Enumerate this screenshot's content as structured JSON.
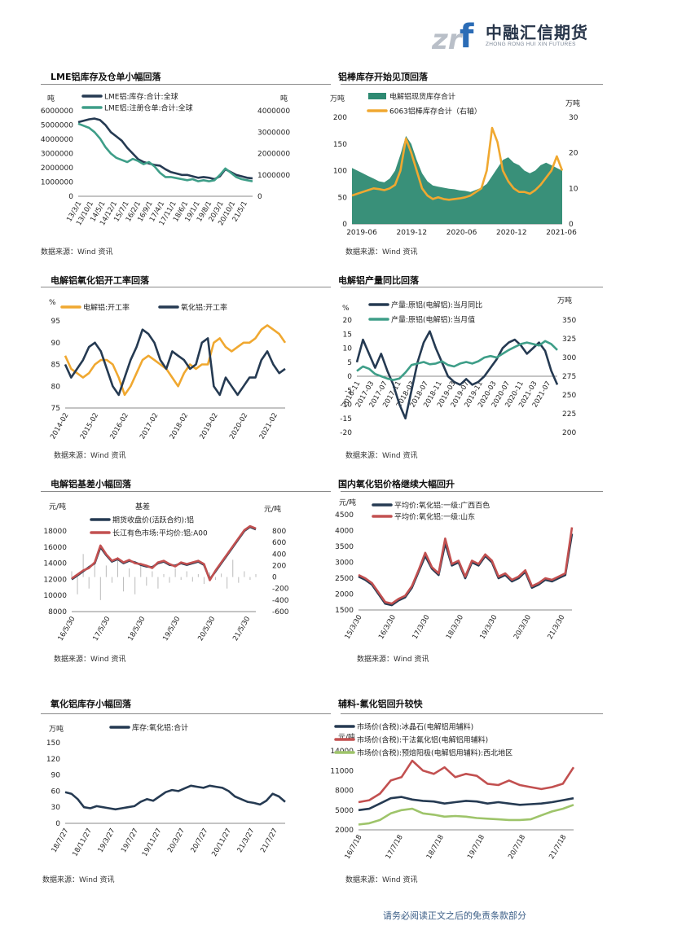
{
  "header": {
    "logo_mark": "zrf",
    "logo_cn": "中融汇信期货",
    "logo_en": "ZHONG RONG HUI XIN FUTURES"
  },
  "footer": {
    "disclaimer": "请务必阅读正文之后的免责条款部分"
  },
  "colors": {
    "navy": "#253a52",
    "teal": "#3e9e88",
    "orange": "#f0a830",
    "green_fill": "#2e8a72",
    "red": "#c25050",
    "lime": "#9ec46a"
  },
  "panels": [
    {
      "title": "LME铝库存及仓单小幅回落",
      "source": "数据来源：Wind 资讯",
      "left_unit": "吨",
      "right_unit": "吨",
      "left_ticks": [
        "6000000",
        "5000000",
        "4000000",
        "3000000",
        "2000000",
        "1000000",
        "0"
      ],
      "right_ticks": [
        "4000000",
        "3000000",
        "2000000",
        "1000000",
        "0"
      ],
      "x_ticks": [
        "13/3/1",
        "13/10/1",
        "14/5/1",
        "14/12/1",
        "15/7/1",
        "16/2/1",
        "16/9/1",
        "17/4/1",
        "17/11/1",
        "18/6/1",
        "19/1/1",
        "19/8/1",
        "20/3/1",
        "20/10/1",
        "21/5/1"
      ],
      "legend": [
        "LME铝:库存:合计:全球",
        "LME铝:注册仓单:合计:全球"
      ]
    },
    {
      "title": "铝棒库存开始见顶回落",
      "source": "数据来源：Wind 资讯",
      "left_unit": "万吨",
      "right_unit": "万吨",
      "left_ticks": [
        "200",
        "150",
        "100",
        "50",
        "0"
      ],
      "right_ticks": [
        "30",
        "20",
        "10",
        "0"
      ],
      "x_ticks": [
        "2019-06",
        "2019-12",
        "2020-06",
        "2020-12",
        "2021-06"
      ],
      "legend": [
        "电解铝现货库存合计",
        "6063铝棒库存合计（右轴）"
      ]
    },
    {
      "title": "电解铝氧化铝开工率回落",
      "source": "数据来源：Wind 资讯",
      "left_unit": "%",
      "left_ticks": [
        "95",
        "90",
        "85",
        "80",
        "75"
      ],
      "x_ticks": [
        "2014-02",
        "2015-02",
        "2016-02",
        "2017-02",
        "2018-02",
        "2019-02",
        "2020-02",
        "2021-02"
      ],
      "legend": [
        "电解铝:开工率",
        "氧化铝:开工率"
      ]
    },
    {
      "title": "电解铝产量同比回落",
      "source": "数据来源：Wind 资讯",
      "left_unit": "%",
      "right_unit": "万吨",
      "left_ticks": [
        "20",
        "15",
        "10",
        "5",
        "0",
        "-5",
        "-10",
        "-15",
        "-20"
      ],
      "right_ticks": [
        "350",
        "325",
        "300",
        "275",
        "250",
        "225",
        "200"
      ],
      "x_ticks": [
        "2016-11",
        "2017-03",
        "2017-07",
        "2017-11",
        "2018-03",
        "2018-07",
        "2018-11",
        "2019-03",
        "2019-07",
        "2019-11",
        "2020-03",
        "2020-07",
        "2020-11",
        "2021-03",
        "2021-07"
      ],
      "legend": [
        "产量:原铝(电解铝):当月同比",
        "产量:原铝(电解铝):当月值"
      ]
    },
    {
      "title": "电解铝基差小幅回落",
      "source": "数据来源：Wind 资讯",
      "left_unit": "元/吨",
      "right_unit": "元/吨",
      "left_ticks": [
        "18000",
        "16000",
        "14000",
        "12000",
        "10000",
        "8000"
      ],
      "right_ticks": [
        "800",
        "600",
        "400",
        "200",
        "0",
        "-200",
        "-400",
        "-600"
      ],
      "x_ticks": [
        "16/5/30",
        "17/5/30",
        "18/5/30",
        "19/5/30",
        "20/5/30",
        "21/5/30"
      ],
      "legend": [
        "基差",
        "期货收盘价(活跃合约):铝",
        "长江有色市场:平均价:铝:A00"
      ]
    },
    {
      "title": "国内氧化铝价格继续大幅回升",
      "source": "数据来源：Wind 资讯",
      "left_unit": "元/吨",
      "left_ticks": [
        "4500",
        "4000",
        "3500",
        "3000",
        "2500",
        "2000",
        "1500"
      ],
      "x_ticks": [
        "15/3/30",
        "16/3/30",
        "17/3/30",
        "18/3/30",
        "19/3/30",
        "20/3/30",
        "21/3/30"
      ],
      "legend": [
        "平均价:氧化铝:一级:广西百色",
        "平均价:氧化铝:一级:山东"
      ]
    },
    {
      "title": "氧化铝库存小幅回落",
      "source": "数据来源：Wind 资讯",
      "left_unit": "万吨",
      "left_ticks": [
        "150",
        "120",
        "90",
        "60",
        "30",
        "0"
      ],
      "x_ticks": [
        "18/7/27",
        "18/11/27",
        "19/3/27",
        "19/7/27",
        "19/11/27",
        "20/3/27",
        "20/7/27",
        "20/11/27",
        "21/3/27",
        "21/7/27"
      ],
      "legend": [
        "库存:氧化铝:合计"
      ]
    },
    {
      "title": "辅料-氟化铝回升较快",
      "source": "数据来源：Wind 资讯",
      "left_unit": "元/吨",
      "left_ticks": [
        "14000",
        "11000",
        "8000",
        "5000",
        "2000"
      ],
      "x_ticks": [
        "16/7/18",
        "17/7/18",
        "18/7/18",
        "19/7/18",
        "20/7/18",
        "21/7/18"
      ],
      "legend": [
        "市场价(含税):冰晶石(电解铝用辅料)",
        "市场价(含税):干法氟化铝(电解铝用辅料)",
        "市场价(含税):预焙阳极(电解铝用辅料):西北地区"
      ]
    }
  ],
  "chart_data": [
    {
      "type": "line",
      "title": "LME铝库存及仓单小幅回落",
      "ylabel": "吨",
      "y2label": "吨",
      "ylim": [
        0,
        6000000
      ],
      "y2lim": [
        0,
        4000000
      ],
      "series": [
        {
          "name": "LME铝:库存:合计:全球",
          "axis": "left",
          "values": [
            5200000,
            5300000,
            5400000,
            5450000,
            5350000,
            5000000,
            4500000,
            4200000,
            3900000,
            3400000,
            3000000,
            2600000,
            2400000,
            2300000,
            2200000,
            2150000,
            1900000,
            1700000,
            1600000,
            1500000,
            1500000,
            1400000,
            1300000,
            1350000,
            1300000,
            1200000,
            1400000,
            1900000,
            1700000,
            1500000,
            1400000,
            1300000,
            1250000
          ]
        },
        {
          "name": "LME铝:注册仓单:合计:全球",
          "axis": "right",
          "values": [
            3400000,
            3300000,
            3200000,
            3000000,
            2700000,
            2300000,
            2000000,
            1800000,
            1700000,
            1600000,
            1750000,
            1650000,
            1500000,
            1600000,
            1400000,
            1100000,
            900000,
            900000,
            850000,
            800000,
            750000,
            800000,
            700000,
            750000,
            700000,
            750000,
            1000000,
            1300000,
            1100000,
            900000,
            800000,
            750000,
            700000
          ]
        }
      ]
    },
    {
      "type": "line",
      "title": "铝棒库存开始见顶回落",
      "ylabel": "万吨",
      "y2label": "万吨",
      "ylim": [
        0,
        200
      ],
      "y2lim": [
        0,
        30
      ],
      "series": [
        {
          "name": "电解铝现货库存合计",
          "axis": "left",
          "kind": "area",
          "values": [
            105,
            100,
            95,
            90,
            85,
            80,
            78,
            85,
            100,
            130,
            165,
            150,
            120,
            95,
            80,
            72,
            70,
            68,
            66,
            65,
            63,
            62,
            60,
            64,
            68,
            75,
            90,
            105,
            120,
            125,
            115,
            110,
            100,
            95,
            100,
            110,
            115,
            110,
            105,
            100
          ]
        },
        {
          "name": "6063铝棒库存合计（右轴）",
          "axis": "right",
          "values": [
            8,
            8.5,
            9,
            9.5,
            10,
            9.8,
            9.5,
            10,
            11,
            15,
            24,
            20,
            15,
            10,
            8,
            7,
            7.5,
            7,
            6.8,
            7,
            7.2,
            7.5,
            8,
            9,
            10,
            15,
            27,
            23,
            15,
            12,
            10,
            9,
            9,
            8.5,
            9.5,
            11,
            13,
            15,
            19,
            15
          ]
        }
      ]
    },
    {
      "type": "line",
      "title": "电解铝氧化铝开工率回落",
      "ylabel": "%",
      "ylim": [
        75,
        95
      ],
      "series": [
        {
          "name": "电解铝:开工率",
          "values": [
            87,
            84,
            83,
            82,
            83,
            85,
            86,
            86,
            85,
            82,
            78,
            80,
            83,
            86,
            87,
            86,
            85,
            84,
            82,
            80,
            83,
            85,
            84,
            85,
            85,
            90,
            91,
            89,
            88,
            89,
            90,
            90,
            91,
            93,
            94,
            93,
            92,
            90
          ]
        },
        {
          "name": "氧化铝:开工率",
          "values": [
            85,
            82,
            84,
            86,
            89,
            90,
            88,
            84,
            80,
            78,
            82,
            86,
            89,
            93,
            92,
            90,
            86,
            84,
            88,
            87,
            86,
            84,
            85,
            90,
            91,
            80,
            78,
            82,
            80,
            78,
            80,
            82,
            82,
            86,
            88,
            85,
            83,
            84
          ]
        }
      ]
    },
    {
      "type": "line",
      "title": "电解铝产量同比回落",
      "ylabel": "%",
      "y2label": "万吨",
      "ylim": [
        -20,
        20
      ],
      "y2lim": [
        200,
        350
      ],
      "series": [
        {
          "name": "产量:原铝(电解铝):当月同比",
          "axis": "left",
          "values": [
            5,
            13,
            8,
            3,
            8,
            2,
            -3,
            -10,
            -15,
            -5,
            5,
            12,
            16,
            10,
            5,
            0,
            -2,
            -3,
            -1,
            -3,
            -2,
            0,
            3,
            6,
            10,
            12,
            13,
            11,
            8,
            10,
            12,
            9,
            2,
            -3
          ]
        },
        {
          "name": "产量:原铝(电解铝):当月值",
          "axis": "right",
          "values": [
            282,
            288,
            285,
            278,
            275,
            272,
            270,
            272,
            280,
            290,
            292,
            294,
            291,
            292,
            295,
            290,
            288,
            292,
            294,
            292,
            295,
            300,
            302,
            300,
            305,
            310,
            314,
            318,
            320,
            318,
            316,
            322,
            318,
            310
          ]
        }
      ]
    },
    {
      "type": "line",
      "title": "电解铝基差小幅回落",
      "ylabel": "元/吨",
      "y2label": "元/吨",
      "ylim": [
        8000,
        18000
      ],
      "y2lim": [
        -600,
        800
      ],
      "series": [
        {
          "name": "基差",
          "axis": "right",
          "kind": "bar",
          "values": [
            100,
            -300,
            400,
            -200,
            300,
            -400,
            200,
            -100,
            350,
            -250,
            150,
            -300,
            250,
            -150,
            100,
            -200,
            50,
            -100,
            150,
            -50,
            100,
            -80,
            50,
            -120,
            80,
            -50,
            60,
            -200,
            300,
            -100,
            100,
            -50,
            50
          ]
        },
        {
          "name": "期货收盘价(活跃合约):铝",
          "axis": "left",
          "values": [
            12000,
            12500,
            13000,
            13500,
            14000,
            16000,
            15000,
            14200,
            14500,
            14000,
            14300,
            14100,
            13800,
            13600,
            13500,
            14000,
            14200,
            13800,
            13700,
            14000,
            13800,
            14000,
            14200,
            13800,
            12000,
            13000,
            14000,
            15000,
            16000,
            17000,
            18000,
            18500,
            18200
          ]
        },
        {
          "name": "长江有色市场:平均价:铝:A00",
          "axis": "left",
          "values": [
            12100,
            12600,
            13100,
            13400,
            14100,
            16200,
            15100,
            14300,
            14600,
            14100,
            14400,
            14000,
            13900,
            13700,
            13400,
            14100,
            14300,
            13900,
            13600,
            14100,
            13900,
            14100,
            14300,
            13900,
            11900,
            13100,
            14100,
            15100,
            16100,
            17100,
            18100,
            18600,
            18300
          ]
        }
      ]
    },
    {
      "type": "line",
      "title": "国内氧化铝价格继续大幅回升",
      "ylabel": "元/吨",
      "ylim": [
        1500,
        4500
      ],
      "series": [
        {
          "name": "平均价:氧化铝:一级:广西百色",
          "values": [
            2550,
            2450,
            2300,
            2000,
            1700,
            1650,
            1800,
            1900,
            2200,
            2700,
            3200,
            2800,
            2600,
            3600,
            2900,
            3000,
            2500,
            3000,
            2900,
            3200,
            3000,
            2500,
            2600,
            2400,
            2500,
            2700,
            2200,
            2300,
            2450,
            2400,
            2500,
            2600,
            3900
          ]
        },
        {
          "name": "平均价:氧化铝:一级:山东",
          "values": [
            2600,
            2500,
            2350,
            2050,
            1750,
            1700,
            1850,
            1950,
            2250,
            2750,
            3300,
            2850,
            2650,
            3750,
            2950,
            3050,
            2550,
            3050,
            2950,
            3250,
            3050,
            2550,
            2650,
            2450,
            2550,
            2750,
            2250,
            2350,
            2500,
            2450,
            2550,
            2650,
            4100
          ]
        }
      ]
    },
    {
      "type": "line",
      "title": "氧化铝库存小幅回落",
      "ylabel": "万吨",
      "ylim": [
        0,
        150
      ],
      "series": [
        {
          "name": "库存:氧化铝:合计",
          "values": [
            58,
            55,
            45,
            30,
            28,
            32,
            30,
            28,
            26,
            28,
            30,
            32,
            40,
            45,
            42,
            50,
            58,
            62,
            60,
            65,
            70,
            68,
            66,
            70,
            68,
            66,
            60,
            50,
            45,
            40,
            38,
            35,
            42,
            55,
            50,
            40
          ]
        }
      ]
    },
    {
      "type": "line",
      "title": "辅料-氟化铝回升较快",
      "ylabel": "元/吨",
      "ylim": [
        2000,
        14000
      ],
      "series": [
        {
          "name": "市场价(含税):冰晶石(电解铝用辅料)",
          "values": [
            5000,
            5200,
            6000,
            6800,
            7000,
            6600,
            6400,
            6300,
            6000,
            6200,
            6400,
            6300,
            6000,
            6200,
            6000,
            5800,
            5900,
            6000,
            6200,
            6500,
            6800
          ]
        },
        {
          "name": "市场价(含税):干法氟化铝(电解铝用辅料)",
          "values": [
            6200,
            6500,
            7500,
            9500,
            10000,
            12500,
            11000,
            10500,
            11500,
            10000,
            10500,
            10200,
            9000,
            8800,
            9500,
            8800,
            8500,
            8200,
            8500,
            9000,
            11500
          ]
        },
        {
          "name": "市场价(含税):预焙阳极(电解铝用辅料):西北地区",
          "values": [
            2800,
            3000,
            3500,
            4500,
            5000,
            5200,
            4500,
            4300,
            4000,
            4100,
            4000,
            3800,
            3700,
            3600,
            3500,
            3500,
            3600,
            4200,
            4800,
            5200,
            5800
          ]
        }
      ]
    }
  ]
}
